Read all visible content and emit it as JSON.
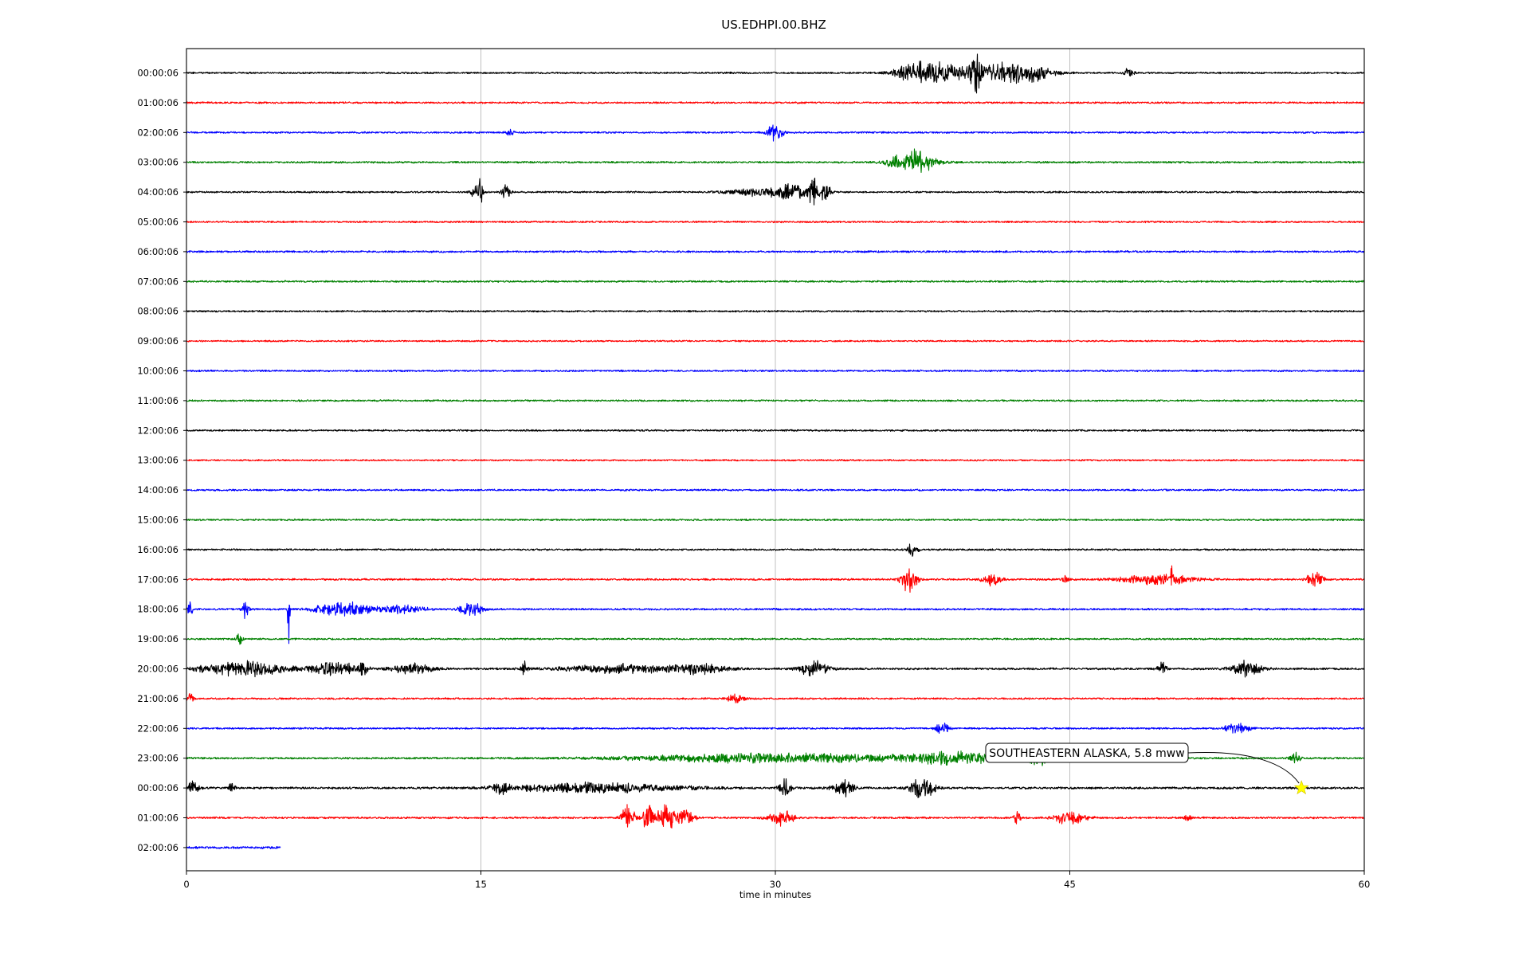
{
  "chart_data": {
    "type": "line",
    "title": "US.EDHPI.00.BHZ",
    "xlabel": "time in minutes",
    "ylabel": "",
    "xlim": [
      0,
      60
    ],
    "xticks": [
      "0",
      "15",
      "30",
      "45",
      "60"
    ],
    "xtick_values": [
      0,
      15,
      30,
      45,
      60
    ],
    "grid": "vertical",
    "legend": "none",
    "series_colors": [
      "#000000",
      "#ff0000",
      "#0000ff",
      "#008000"
    ],
    "rows": [
      {
        "label": "00:00:06",
        "color": "#000000",
        "end": 60,
        "noise": 1.2,
        "events": [
          [
            37.3,
            1.5,
            14
          ],
          [
            38.5,
            2.2,
            9
          ],
          [
            40.2,
            0.3,
            30
          ],
          [
            41.5,
            2.5,
            13
          ],
          [
            43,
            1.5,
            9
          ],
          [
            48,
            0.3,
            7
          ]
        ]
      },
      {
        "label": "01:00:06",
        "color": "#ff0000",
        "end": 60,
        "noise": 1.2,
        "events": []
      },
      {
        "label": "02:00:06",
        "color": "#0000ff",
        "end": 60,
        "noise": 1.2,
        "events": [
          [
            16.5,
            0.3,
            5
          ],
          [
            30,
            0.5,
            14
          ]
        ]
      },
      {
        "label": "03:00:06",
        "color": "#008000",
        "end": 60,
        "noise": 1.3,
        "events": [
          [
            37,
            1.5,
            19
          ]
        ]
      },
      {
        "label": "04:00:06",
        "color": "#000000",
        "end": 60,
        "noise": 1.2,
        "events": [
          [
            14.7,
            0.3,
            12
          ],
          [
            15,
            0.1,
            22
          ],
          [
            16.3,
            0.3,
            12
          ],
          [
            29,
            2,
            5
          ],
          [
            31,
            1.5,
            10
          ],
          [
            31.9,
            0.2,
            30
          ],
          [
            32.5,
            0.4,
            14
          ]
        ]
      },
      {
        "label": "05:00:06",
        "color": "#ff0000",
        "end": 60,
        "noise": 1.2,
        "events": []
      },
      {
        "label": "06:00:06",
        "color": "#0000ff",
        "end": 60,
        "noise": 1.3,
        "events": []
      },
      {
        "label": "07:00:06",
        "color": "#008000",
        "end": 60,
        "noise": 1.2,
        "events": []
      },
      {
        "label": "08:00:06",
        "color": "#000000",
        "end": 60,
        "noise": 1.2,
        "events": []
      },
      {
        "label": "09:00:06",
        "color": "#ff0000",
        "end": 60,
        "noise": 1.1,
        "events": []
      },
      {
        "label": "10:00:06",
        "color": "#0000ff",
        "end": 60,
        "noise": 1.2,
        "events": []
      },
      {
        "label": "11:00:06",
        "color": "#008000",
        "end": 60,
        "noise": 1.2,
        "events": []
      },
      {
        "label": "12:00:06",
        "color": "#000000",
        "end": 60,
        "noise": 1.2,
        "events": []
      },
      {
        "label": "13:00:06",
        "color": "#ff0000",
        "end": 60,
        "noise": 1.1,
        "events": []
      },
      {
        "label": "14:00:06",
        "color": "#0000ff",
        "end": 60,
        "noise": 1.2,
        "events": []
      },
      {
        "label": "15:00:06",
        "color": "#008000",
        "end": 60,
        "noise": 1.2,
        "events": []
      },
      {
        "label": "16:00:06",
        "color": "#000000",
        "end": 60,
        "noise": 1.2,
        "events": [
          [
            37,
            0.3,
            12
          ]
        ]
      },
      {
        "label": "17:00:06",
        "color": "#ff0000",
        "end": 60,
        "noise": 1.3,
        "events": [
          [
            36.8,
            0.5,
            20
          ],
          [
            41,
            0.6,
            12
          ],
          [
            44.8,
            0.2,
            9
          ],
          [
            49.5,
            2.5,
            8
          ],
          [
            50.2,
            0.1,
            13
          ],
          [
            57.5,
            0.5,
            14
          ]
        ]
      },
      {
        "label": "18:00:06",
        "color": "#0000ff",
        "end": 60,
        "noise": 1.3,
        "events": [
          [
            0.2,
            0.2,
            12
          ],
          [
            3,
            0.2,
            14
          ],
          [
            5.2,
            0.05,
            60
          ],
          [
            8,
            2,
            10
          ],
          [
            11,
            1.5,
            6
          ],
          [
            14.5,
            0.8,
            10
          ]
        ]
      },
      {
        "label": "19:00:06",
        "color": "#008000",
        "end": 60,
        "noise": 1.2,
        "events": [
          [
            2.7,
            0.2,
            8
          ]
        ]
      },
      {
        "label": "20:00:06",
        "color": "#000000",
        "end": 60,
        "noise": 1.4,
        "events": [
          [
            3,
            3,
            11
          ],
          [
            7.5,
            1.5,
            11
          ],
          [
            9,
            0.3,
            11
          ],
          [
            11.5,
            1.5,
            7
          ],
          [
            17.2,
            0.2,
            11
          ],
          [
            22,
            4,
            6
          ],
          [
            26,
            2,
            8
          ],
          [
            32,
            1,
            12
          ],
          [
            49.7,
            0.3,
            10
          ],
          [
            54,
            1,
            11
          ]
        ]
      },
      {
        "label": "21:00:06",
        "color": "#ff0000",
        "end": 60,
        "noise": 1.2,
        "events": [
          [
            0.2,
            0.2,
            8
          ],
          [
            28,
            0.6,
            6
          ]
        ]
      },
      {
        "label": "22:00:06",
        "color": "#0000ff",
        "end": 60,
        "noise": 1.2,
        "events": [
          [
            38.5,
            0.4,
            9
          ],
          [
            53.5,
            0.8,
            9
          ]
        ]
      },
      {
        "label": "23:00:06",
        "color": "#008000",
        "end": 60,
        "noise": 1.3,
        "events": [
          [
            30,
            10,
            7
          ],
          [
            39,
            3,
            9
          ],
          [
            43.5,
            1,
            9
          ],
          [
            56.5,
            0.3,
            12
          ]
        ]
      },
      {
        "label": "00:00:06",
        "color": "#000000",
        "end": 60,
        "noise": 1.5,
        "events": [
          [
            0.3,
            0.4,
            10
          ],
          [
            2.3,
            0.2,
            8
          ],
          [
            16,
            0.5,
            9
          ],
          [
            21,
            6,
            7
          ],
          [
            30.5,
            0.4,
            14
          ],
          [
            33.5,
            0.7,
            12
          ],
          [
            37.5,
            0.8,
            16
          ]
        ]
      },
      {
        "label": "01:00:06",
        "color": "#ff0000",
        "end": 60,
        "noise": 1.3,
        "events": [
          [
            22.5,
            0.4,
            30
          ],
          [
            23.5,
            0.3,
            30
          ],
          [
            24.5,
            0.8,
            20
          ],
          [
            25.5,
            0.5,
            12
          ],
          [
            30.3,
            0.8,
            12
          ],
          [
            42.3,
            0.2,
            11
          ],
          [
            45,
            1,
            11
          ],
          [
            51,
            0.2,
            6
          ]
        ]
      },
      {
        "label": "02:00:06",
        "color": "#0000ff",
        "end": 4.8,
        "noise": 1.6,
        "events": []
      }
    ],
    "annotations": [
      {
        "text": "SOUTHEASTERN ALASKA, 5.8 mww",
        "row": 24,
        "x": 56.8,
        "marker": "star",
        "marker_color": "#ffff00"
      }
    ]
  }
}
